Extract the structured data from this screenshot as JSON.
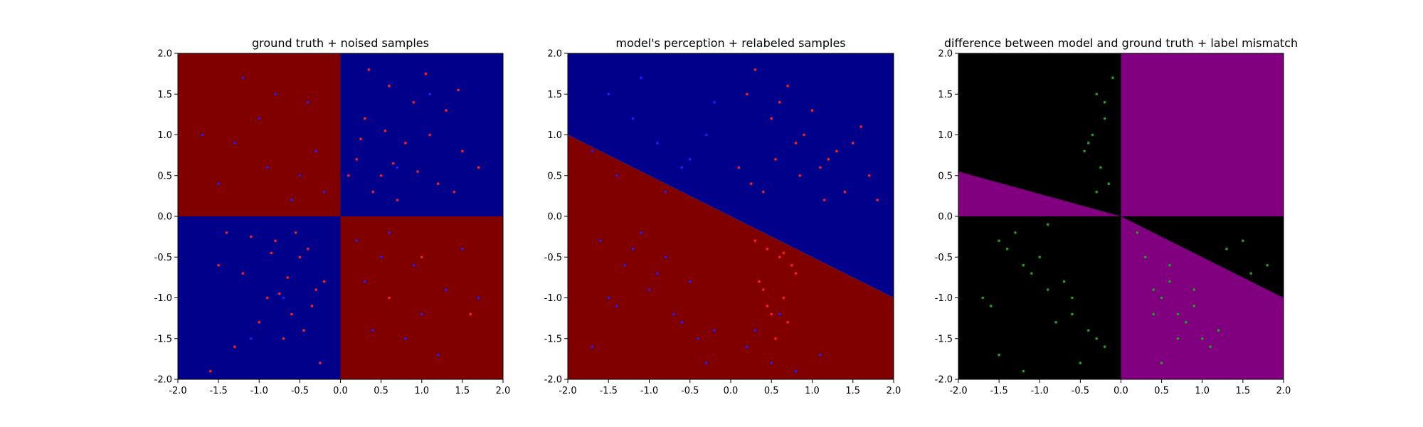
{
  "chart_data": [
    {
      "type": "scatter",
      "title": "ground truth + noised samples",
      "xlim": [
        -2.0,
        2.0
      ],
      "ylim": [
        -2.0,
        2.0
      ],
      "x_ticks": [
        "-2.0",
        "-1.5",
        "-1.0",
        "-0.5",
        "0.0",
        "0.5",
        "1.0",
        "1.5",
        "2.0"
      ],
      "y_ticks": [
        "-2.0",
        "-1.5",
        "-1.0",
        "-0.5",
        "0.0",
        "0.5",
        "1.0",
        "1.5",
        "2.0"
      ],
      "background": "checkerboard: red where x*y>0, blue where x*y<0",
      "region_colors": {
        "positive": "#800000",
        "negative": "#00008b"
      },
      "point_colors": {
        "red": "#ff2020",
        "blue": "#2020ff"
      },
      "series": [
        {
          "color": "red",
          "x": [
            0.5,
            0.3,
            0.8,
            1.2,
            0.6,
            0.2,
            1.5,
            0.9,
            0.4,
            1.1,
            1.7,
            0.7,
            0.35,
            1.3,
            0.55,
            0.95,
            1.45,
            0.25,
            0.65,
            1.05,
            -0.5,
            -0.8,
            -0.3,
            -1.2,
            -0.6,
            -0.9,
            -0.4,
            -1.5,
            -0.7,
            -0.2,
            -1.0,
            -0.55,
            -0.35,
            -1.3,
            -0.65,
            -0.85,
            -0.45,
            -1.1,
            -0.75,
            -0.25,
            -1.6,
            1.0,
            1.6,
            0.1,
            0.6,
            1.4,
            -0.3,
            -1.4
          ],
          "y": [
            0.5,
            1.2,
            0.9,
            0.4,
            1.6,
            0.7,
            0.8,
            1.4,
            0.3,
            1.0,
            0.6,
            0.2,
            1.8,
            1.3,
            1.05,
            0.55,
            1.55,
            0.95,
            0.65,
            1.75,
            -0.5,
            -0.3,
            -0.9,
            -0.7,
            -1.2,
            -1.0,
            -0.4,
            -0.6,
            -1.5,
            -0.8,
            -1.3,
            -0.2,
            -1.1,
            -1.6,
            -0.75,
            -0.45,
            -1.4,
            -0.25,
            -0.95,
            -1.8,
            -1.9,
            -0.5,
            -1.2,
            0.5,
            -1.0,
            0.3,
            0.8,
            -0.2
          ]
        },
        {
          "color": "blue",
          "x": [
            -0.5,
            -1.0,
            -0.3,
            -1.5,
            -0.8,
            -0.2,
            -1.2,
            -0.6,
            -1.7,
            -0.4,
            -0.9,
            -1.3,
            0.5,
            1.0,
            0.3,
            1.5,
            0.8,
            0.2,
            1.2,
            0.6,
            1.7,
            0.4,
            0.9,
            1.3,
            -0.7,
            0.7,
            -1.1,
            1.1
          ],
          "y": [
            0.5,
            1.2,
            0.8,
            0.4,
            1.5,
            0.3,
            1.7,
            0.2,
            1.0,
            1.4,
            0.6,
            0.9,
            -0.5,
            -1.2,
            -0.8,
            -0.4,
            -1.5,
            -0.3,
            -1.7,
            -0.2,
            -1.0,
            -1.4,
            -0.6,
            -0.9,
            -1.0,
            0.6,
            -1.5,
            1.5
          ]
        }
      ]
    },
    {
      "type": "scatter",
      "title": "model's perception + relabeled samples",
      "xlim": [
        -2.0,
        2.0
      ],
      "ylim": [
        -2.0,
        2.0
      ],
      "x_ticks": [
        "-2.0",
        "-1.5",
        "-1.0",
        "-0.5",
        "0.0",
        "0.5",
        "1.0",
        "1.5",
        "2.0"
      ],
      "y_ticks": [
        "-2.0",
        "-1.5",
        "-1.0",
        "-0.5",
        "0.0",
        "0.5",
        "1.0",
        "1.5",
        "2.0"
      ],
      "background": "blue above the line y = -0.5*x, red below",
      "decision_boundary": {
        "slope": -0.5,
        "intercept": 0.0
      },
      "region_colors": {
        "upper": "#00008b",
        "lower": "#800000"
      },
      "point_colors": {
        "red": "#ff2020",
        "blue": "#2020ff"
      },
      "series": [
        {
          "color": "red",
          "x": [
            0.2,
            0.5,
            0.8,
            1.1,
            1.4,
            1.7,
            0.3,
            0.6,
            0.9,
            1.2,
            1.5,
            1.8,
            0.1,
            0.4,
            0.7,
            1.0,
            1.3,
            1.6,
            0.25,
            0.55,
            0.85,
            1.15,
            0.45,
            0.75,
            0.35,
            0.65,
            0.5,
            0.6,
            0.4,
            0.7,
            0.55,
            0.3,
            0.8,
            0.45,
            0.65
          ],
          "y": [
            1.5,
            1.2,
            0.9,
            0.6,
            0.3,
            0.5,
            1.8,
            1.4,
            1.0,
            0.7,
            0.9,
            0.2,
            0.6,
            0.3,
            1.6,
            1.3,
            0.8,
            1.1,
            0.4,
            0.7,
            0.5,
            0.2,
            -0.4,
            -0.6,
            -0.8,
            -1.0,
            -1.2,
            -0.5,
            -0.9,
            -1.3,
            -1.5,
            -0.3,
            -0.7,
            -1.1,
            -0.45
          ]
        },
        {
          "color": "blue",
          "x": [
            -1.5,
            -1.2,
            -0.9,
            -0.6,
            -0.3,
            -1.7,
            -1.4,
            -1.1,
            -0.8,
            -0.5,
            -0.2,
            -1.6,
            -1.3,
            -1.0,
            -0.7,
            -0.4,
            -1.5,
            -1.2,
            -0.9,
            -0.6,
            -0.3,
            -1.7,
            -1.4,
            -1.1,
            -0.8,
            -0.5,
            -0.2,
            0.2,
            0.5,
            0.8,
            1.1,
            0.3,
            0.6
          ],
          "y": [
            1.5,
            1.2,
            0.9,
            0.6,
            1.0,
            0.8,
            0.5,
            1.7,
            0.3,
            0.7,
            1.4,
            -0.3,
            -0.6,
            -0.9,
            -1.2,
            -1.5,
            -1.0,
            -0.4,
            -0.7,
            -1.3,
            -1.8,
            -1.6,
            -1.1,
            -0.2,
            -0.5,
            -0.8,
            -1.4,
            -1.6,
            -1.8,
            -1.9,
            -1.7,
            -1.4,
            -1.2
          ]
        }
      ]
    },
    {
      "type": "scatter",
      "title": "difference between model and ground truth + label mismatch",
      "xlim": [
        -2.0,
        2.0
      ],
      "ylim": [
        -2.0,
        2.0
      ],
      "x_ticks": [
        "-2.0",
        "-1.5",
        "-1.0",
        "-0.5",
        "0.0",
        "0.5",
        "1.0",
        "1.5",
        "2.0"
      ],
      "y_ticks": [
        "-2.0",
        "-1.5",
        "-1.0",
        "-0.5",
        "0.0",
        "0.5",
        "1.0",
        "1.5",
        "2.0"
      ],
      "background": "purple where model and ground truth disagree, black elsewhere",
      "region_colors": {
        "match": "#000000",
        "mismatch": "#800080"
      },
      "point_colors": {
        "green": "#20a020"
      },
      "series": [
        {
          "color": "green",
          "x": [
            -0.3,
            -0.2,
            -0.4,
            -0.25,
            -0.15,
            -0.35,
            -0.45,
            -0.1,
            -0.3,
            -0.2,
            -1.5,
            -1.2,
            -0.9,
            -0.6,
            -0.3,
            -1.7,
            -1.4,
            -1.1,
            -0.8,
            -0.5,
            -0.2,
            -1.6,
            -1.3,
            -1.0,
            -0.7,
            -0.4,
            -1.5,
            -1.2,
            -0.9,
            -0.6,
            0.3,
            0.6,
            0.9,
            1.2,
            1.5,
            1.8,
            0.4,
            0.7,
            1.0,
            1.3,
            1.6,
            0.5,
            0.8,
            1.1,
            0.2,
            0.6,
            0.9,
            0.4,
            0.7,
            0.5
          ],
          "y": [
            1.5,
            1.2,
            0.9,
            0.6,
            0.4,
            1.0,
            0.8,
            1.7,
            0.3,
            1.4,
            -0.3,
            -0.6,
            -0.9,
            -1.2,
            -1.5,
            -1.0,
            -0.4,
            -0.7,
            -1.3,
            -1.8,
            -1.6,
            -1.1,
            -0.2,
            -0.5,
            -0.8,
            -1.4,
            -1.7,
            -1.9,
            -0.1,
            -1.0,
            -0.5,
            -0.8,
            -1.1,
            -1.4,
            -0.3,
            -0.6,
            -0.9,
            -1.2,
            -1.5,
            -0.4,
            -0.7,
            -1.0,
            -1.3,
            -1.6,
            -0.2,
            -0.6,
            -0.9,
            -1.2,
            -1.5,
            -1.8
          ]
        }
      ]
    }
  ]
}
